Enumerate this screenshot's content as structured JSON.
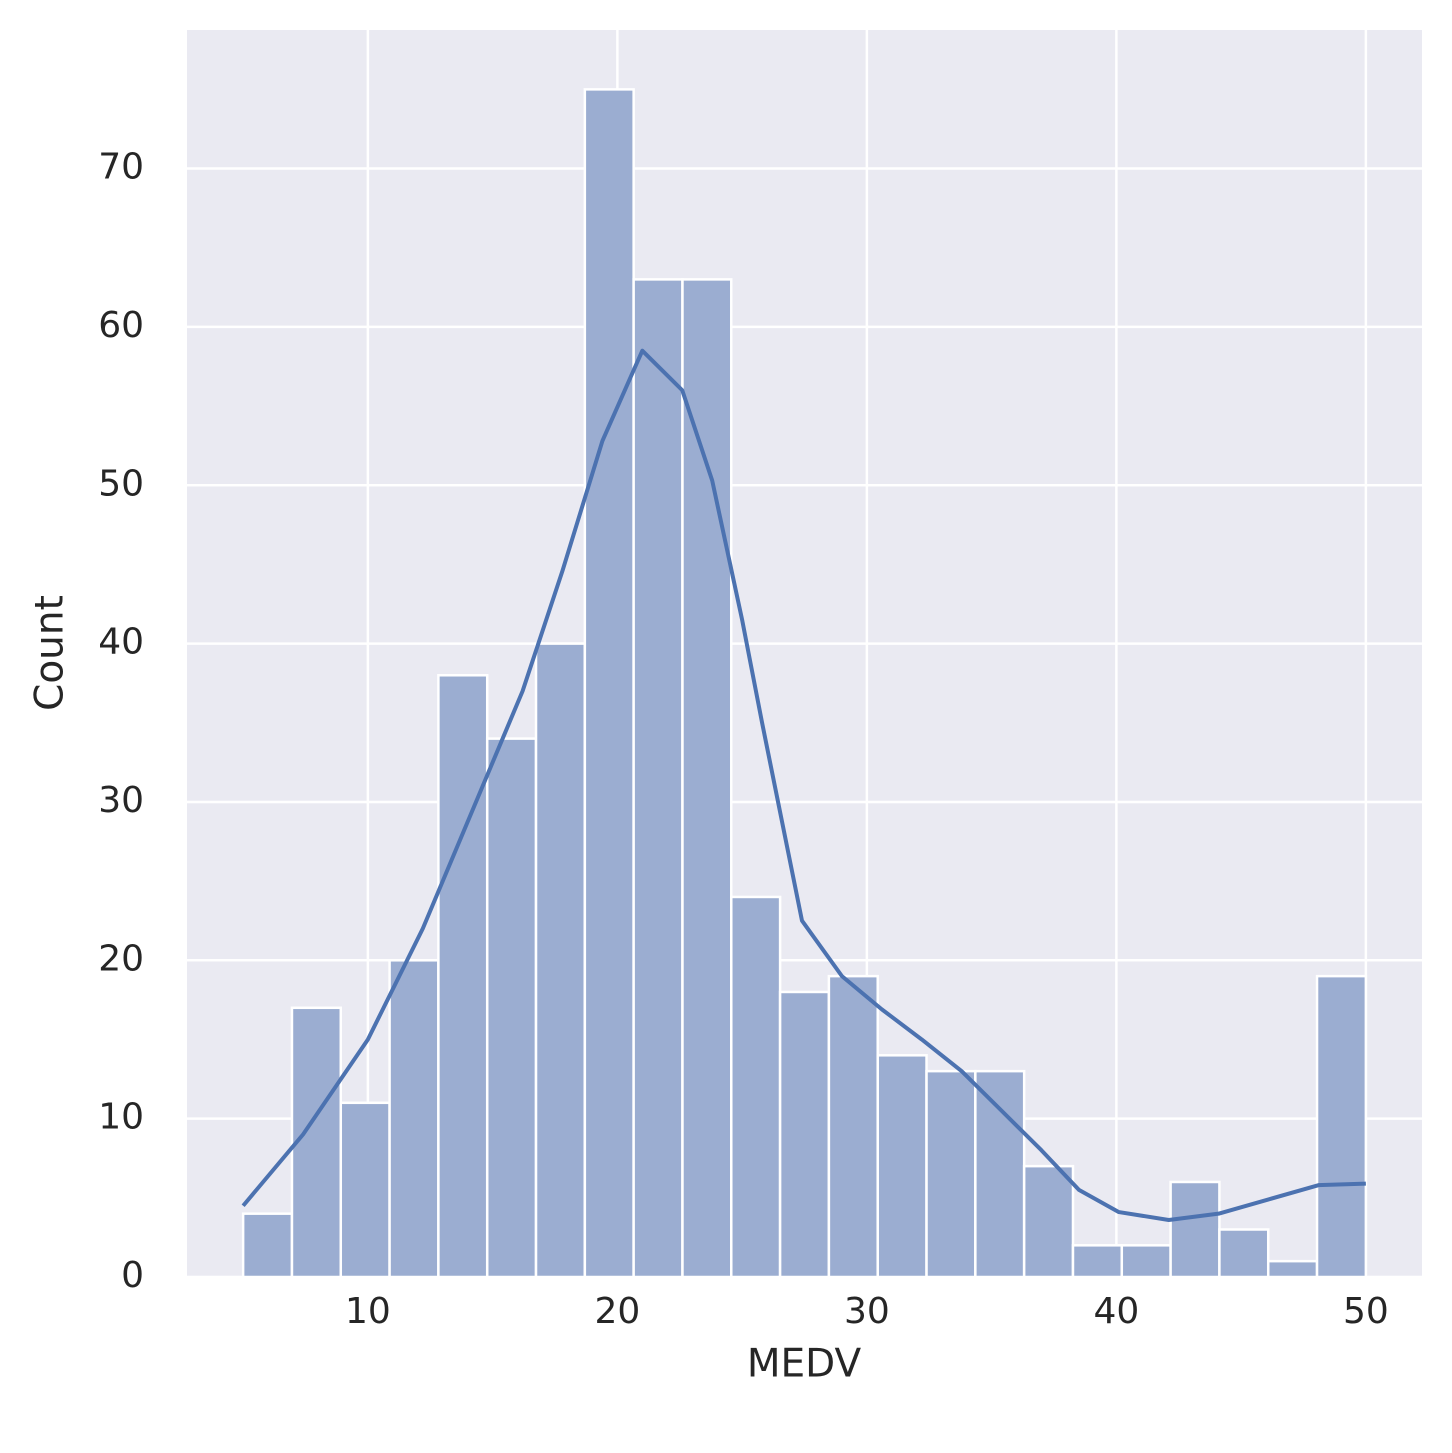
{
  "chart_data": {
    "type": "histogram",
    "x_label": "MEDV",
    "y_label": "Count",
    "bins": [
      5,
      6.957,
      8.913,
      10.87,
      12.826,
      14.783,
      16.739,
      18.696,
      20.652,
      22.609,
      24.565,
      26.522,
      28.478,
      30.435,
      32.391,
      34.348,
      36.304,
      38.261,
      40.217,
      42.174,
      44.13,
      46.087,
      48.043,
      50
    ],
    "values": [
      4,
      17,
      11,
      20,
      38,
      34,
      40,
      75,
      63,
      63,
      24,
      18,
      19,
      14,
      13,
      13,
      7,
      2,
      2,
      6,
      3,
      1,
      19
    ],
    "color": "#9badd1",
    "kde": {
      "color": "#4c72b0",
      "x": [
        5,
        7.4,
        10,
        12.2,
        14.6,
        16.2,
        17.8,
        19.4,
        21,
        22.6,
        23.8,
        25,
        25.8,
        27.4,
        29,
        30.6,
        32.2,
        33.8,
        35.4,
        37,
        38.5,
        40.1,
        42.1,
        44.1,
        46.1,
        48.1,
        50
      ],
      "values": [
        4.5,
        9,
        15,
        22,
        31,
        37,
        44.6,
        52.8,
        58.5,
        56,
        50.3,
        41.5,
        35,
        22.5,
        19,
        16.9,
        15,
        13,
        10.5,
        8,
        5.5,
        4.1,
        3.6,
        4,
        4.9,
        5.8,
        5.9
      ]
    },
    "xlim": [
      2.75,
      52.25
    ],
    "ylim": [
      0,
      78.75
    ],
    "xticks": [
      10,
      20,
      30,
      40,
      50
    ],
    "yticks": [
      0,
      10,
      20,
      30,
      40,
      50,
      60,
      70
    ],
    "grid": true,
    "background": "#eaeaf2"
  }
}
